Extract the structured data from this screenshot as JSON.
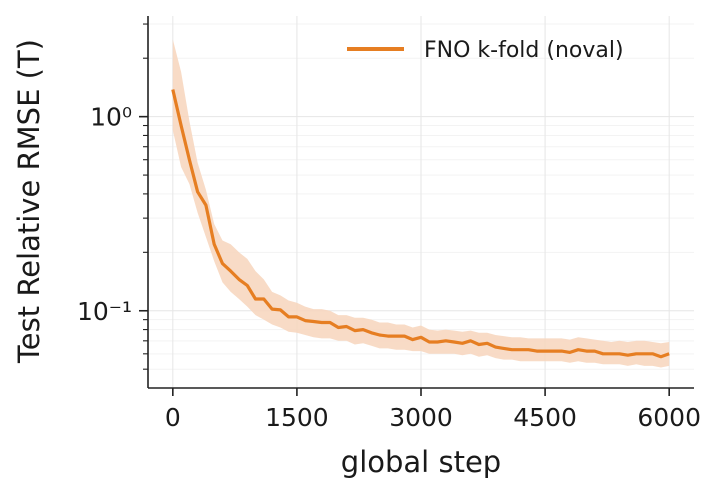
{
  "chart_data": {
    "type": "line",
    "title": "",
    "xlabel": "global step",
    "ylabel": "Test Relative RMSE (T)",
    "yscale": "log",
    "xlim": [
      -300,
      6300
    ],
    "ylim": [
      0.04,
      3.3
    ],
    "xticks": [
      0,
      1500,
      3000,
      4500,
      6000
    ],
    "xtick_labels": [
      "0",
      "1500",
      "3000",
      "4500",
      "6000"
    ],
    "yticks": [
      0.1,
      1
    ],
    "ytick_labels": [
      "10⁻¹",
      "10⁰"
    ],
    "grid": true,
    "legend_position": "top-right",
    "series": [
      {
        "name": "FNO k-fold (noval)",
        "color": "#e67e22",
        "band_color": "#f7d5bc",
        "x": [
          0,
          100,
          200,
          300,
          400,
          500,
          600,
          700,
          800,
          900,
          1000,
          1100,
          1200,
          1300,
          1400,
          1500,
          1600,
          1700,
          1800,
          1900,
          2000,
          2100,
          2200,
          2300,
          2400,
          2500,
          2600,
          2700,
          2800,
          2900,
          3000,
          3100,
          3200,
          3300,
          3400,
          3500,
          3600,
          3700,
          3800,
          3900,
          4000,
          4100,
          4200,
          4300,
          4400,
          4500,
          4600,
          4700,
          4800,
          4900,
          5000,
          5100,
          5200,
          5300,
          5400,
          5500,
          5600,
          5700,
          5800,
          5900,
          6000
        ],
        "y": [
          1.38,
          0.9,
          0.6,
          0.41,
          0.35,
          0.22,
          0.175,
          0.16,
          0.145,
          0.135,
          0.115,
          0.115,
          0.102,
          0.101,
          0.093,
          0.093,
          0.089,
          0.088,
          0.087,
          0.087,
          0.082,
          0.083,
          0.079,
          0.08,
          0.077,
          0.075,
          0.074,
          0.074,
          0.074,
          0.071,
          0.073,
          0.069,
          0.069,
          0.07,
          0.069,
          0.068,
          0.07,
          0.067,
          0.068,
          0.065,
          0.064,
          0.063,
          0.063,
          0.063,
          0.062,
          0.062,
          0.062,
          0.062,
          0.061,
          0.063,
          0.062,
          0.062,
          0.06,
          0.06,
          0.06,
          0.059,
          0.06,
          0.06,
          0.06,
          0.058,
          0.06
        ],
        "lower": [
          0.85,
          0.55,
          0.45,
          0.32,
          0.24,
          0.18,
          0.14,
          0.125,
          0.115,
          0.105,
          0.095,
          0.09,
          0.085,
          0.082,
          0.078,
          0.077,
          0.075,
          0.073,
          0.072,
          0.072,
          0.07,
          0.07,
          0.067,
          0.068,
          0.066,
          0.064,
          0.064,
          0.063,
          0.063,
          0.062,
          0.062,
          0.06,
          0.06,
          0.06,
          0.06,
          0.059,
          0.06,
          0.058,
          0.059,
          0.057,
          0.056,
          0.056,
          0.055,
          0.055,
          0.055,
          0.055,
          0.055,
          0.055,
          0.054,
          0.055,
          0.054,
          0.054,
          0.053,
          0.053,
          0.053,
          0.052,
          0.053,
          0.052,
          0.052,
          0.051,
          0.052
        ],
        "upper": [
          2.5,
          1.7,
          0.95,
          0.58,
          0.42,
          0.28,
          0.23,
          0.22,
          0.2,
          0.185,
          0.16,
          0.145,
          0.125,
          0.12,
          0.113,
          0.11,
          0.105,
          0.102,
          0.102,
          0.1,
          0.095,
          0.095,
          0.092,
          0.092,
          0.09,
          0.087,
          0.087,
          0.085,
          0.085,
          0.082,
          0.084,
          0.08,
          0.079,
          0.08,
          0.079,
          0.078,
          0.079,
          0.077,
          0.077,
          0.075,
          0.074,
          0.073,
          0.073,
          0.072,
          0.072,
          0.072,
          0.072,
          0.072,
          0.071,
          0.073,
          0.072,
          0.071,
          0.07,
          0.069,
          0.07,
          0.069,
          0.07,
          0.07,
          0.069,
          0.068,
          0.069
        ]
      }
    ]
  }
}
